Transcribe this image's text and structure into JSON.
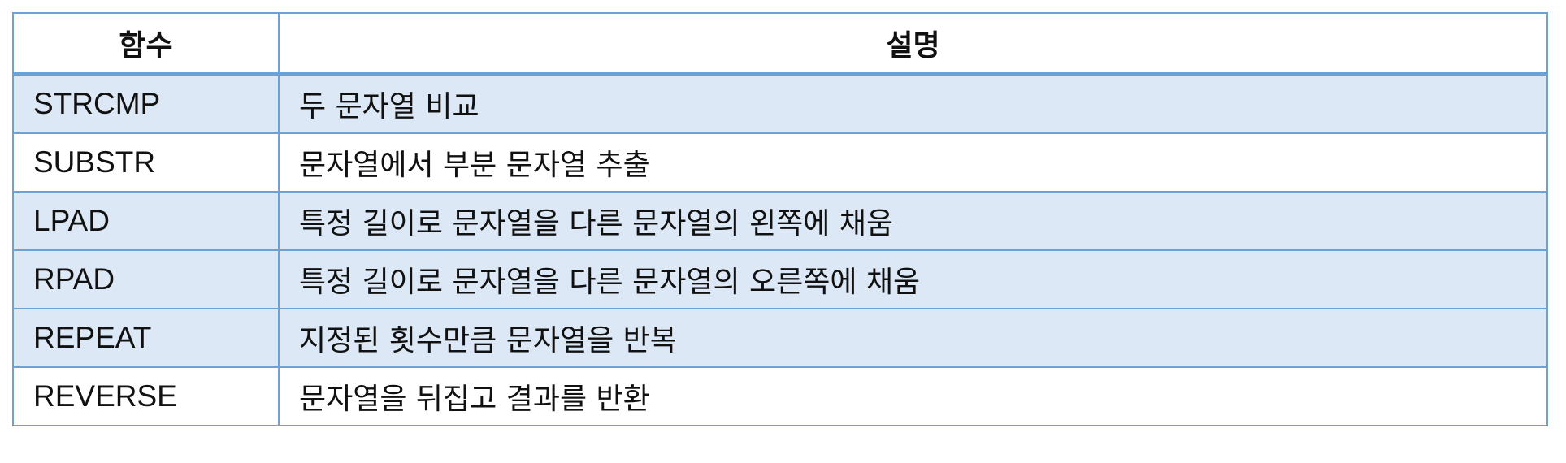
{
  "table": {
    "headers": [
      "함수",
      "설명"
    ],
    "rows": [
      {
        "function": "STRCMP",
        "description": "두 문자열 비교"
      },
      {
        "function": "SUBSTR",
        "description": "문자열에서 부분 문자열 추출"
      },
      {
        "function": "LPAD",
        "description": "특정 길이로 문자열을 다른 문자열의 왼쪽에 채움"
      },
      {
        "function": "RPAD",
        "description": "특정 길이로 문자열을 다른 문자열의 오른쪽에 채움"
      },
      {
        "function": "REPEAT",
        "description": "지정된 횟수만큼 문자열을 반복"
      },
      {
        "function": "REVERSE",
        "description": "문자열을 뒤집고 결과를 반환"
      }
    ]
  },
  "colors": {
    "border": "#6fa0d2",
    "shaded_row": "#dce8f5",
    "plain_row": "#ffffff"
  }
}
